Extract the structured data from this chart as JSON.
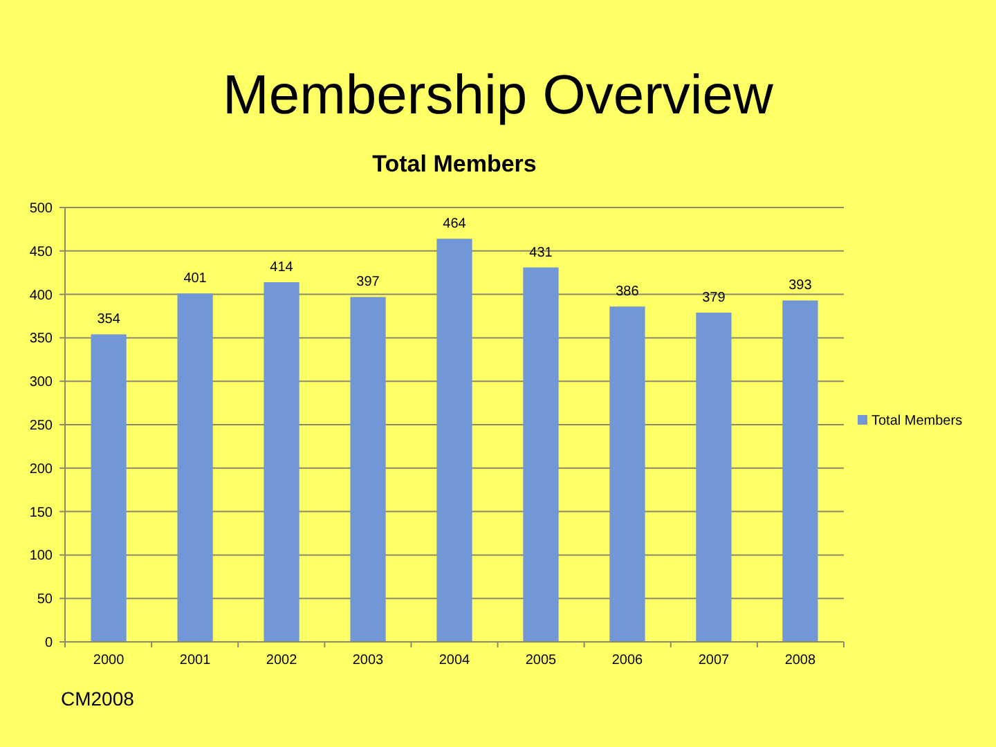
{
  "chart_data": {
    "type": "bar",
    "title": "Membership Overview",
    "subtitle": "Total Members",
    "categories": [
      "2000",
      "2001",
      "2002",
      "2003",
      "2004",
      "2005",
      "2006",
      "2007",
      "2008"
    ],
    "series": [
      {
        "name": "Total Members",
        "color": "#7297d6",
        "values": [
          354,
          401,
          414,
          397,
          464,
          431,
          386,
          379,
          393
        ]
      }
    ],
    "ylim": [
      0,
      500
    ],
    "yticks": [
      0,
      50,
      100,
      150,
      200,
      250,
      300,
      350,
      400,
      450,
      500
    ],
    "grid": "y",
    "legend": "right",
    "data_labels": true,
    "annotations": [
      "CM2008"
    ]
  }
}
